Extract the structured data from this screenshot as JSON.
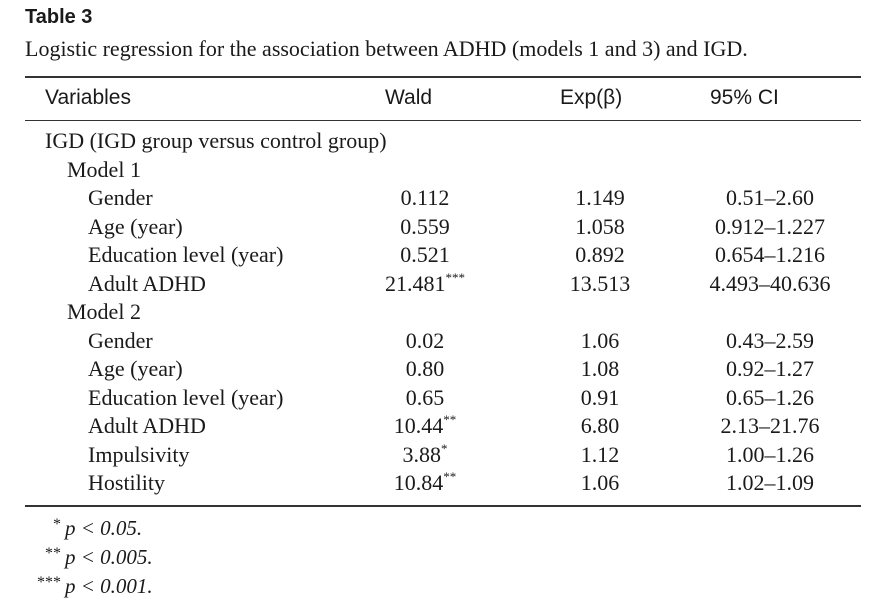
{
  "table": {
    "label": "Table 3",
    "caption": "Logistic regression for the association between ADHD (models 1 and 3) and IGD.",
    "headers": {
      "variables": "Variables",
      "wald": "Wald",
      "exp": "Exp(β)",
      "ci": "95% CI"
    },
    "section": "IGD (IGD group versus control group)",
    "models": [
      {
        "name": "Model 1",
        "rows": [
          {
            "variable": "Gender",
            "wald": "0.112",
            "sig": "",
            "exp": "1.149",
            "ci": "0.51–2.60"
          },
          {
            "variable": "Age (year)",
            "wald": "0.559",
            "sig": "",
            "exp": "1.058",
            "ci": "0.912–1.227"
          },
          {
            "variable": "Education level (year)",
            "wald": "0.521",
            "sig": "",
            "exp": "0.892",
            "ci": "0.654–1.216"
          },
          {
            "variable": "Adult ADHD",
            "wald": "21.481",
            "sig": "***",
            "exp": "13.513",
            "ci": "4.493–40.636"
          }
        ]
      },
      {
        "name": "Model 2",
        "rows": [
          {
            "variable": "Gender",
            "wald": "0.02",
            "sig": "",
            "exp": "1.06",
            "ci": "0.43–2.59"
          },
          {
            "variable": "Age (year)",
            "wald": "0.80",
            "sig": "",
            "exp": "1.08",
            "ci": "0.92–1.27"
          },
          {
            "variable": "Education level (year)",
            "wald": "0.65",
            "sig": "",
            "exp": "0.91",
            "ci": "0.65–1.26"
          },
          {
            "variable": "Adult ADHD",
            "wald": "10.44",
            "sig": "**",
            "exp": "6.80",
            "ci": "2.13–21.76"
          },
          {
            "variable": "Impulsivity",
            "wald": "3.88",
            "sig": "*",
            "exp": "1.12",
            "ci": "1.00–1.26"
          },
          {
            "variable": "Hostility",
            "wald": "10.84",
            "sig": "**",
            "exp": "1.06",
            "ci": "1.02–1.09"
          }
        ]
      }
    ],
    "footnotes": [
      {
        "mark": "*",
        "text": "p < 0.05."
      },
      {
        "mark": "**",
        "text": "p < 0.005."
      },
      {
        "mark": "***",
        "text": "p < 0.001."
      }
    ]
  }
}
